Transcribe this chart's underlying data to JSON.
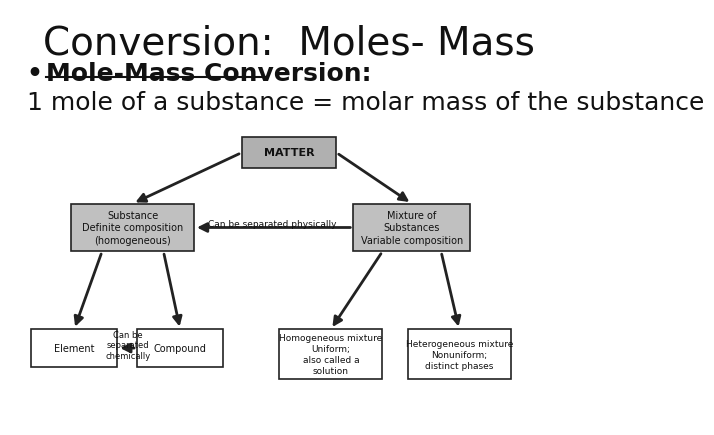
{
  "title": "Conversion:  Moles- Mass",
  "bullet1": "Mole-Mass Conversion: ",
  "line2": "1 mole of a substance = molar mass of the substance",
  "bg_color": "#ffffff",
  "title_fontsize": 28,
  "bullet_fontsize": 18,
  "line2_fontsize": 18,
  "matter_fill": "#b0b0b0",
  "mid_fill": "#c0c0c0",
  "bottom_fill": "#ffffff",
  "edge_color": "#222222",
  "text_color": "#111111",
  "arrow_color": "#222222"
}
